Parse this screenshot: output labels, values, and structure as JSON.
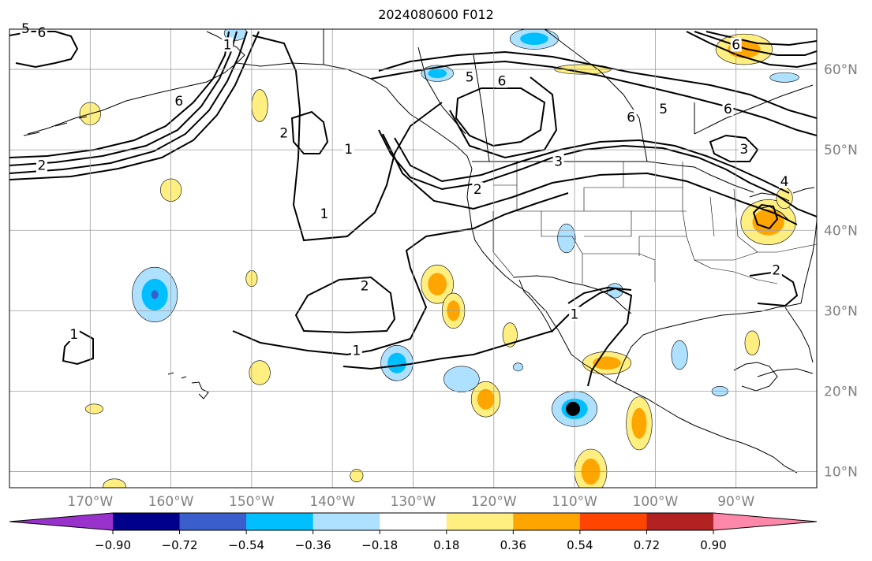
{
  "title": "2024080600 F012",
  "map": {
    "projection": "plate-carree",
    "lon_range": [
      -180,
      -80
    ],
    "lat_range": [
      8,
      65
    ],
    "lon_ticks": [
      {
        "value": -170,
        "label": "170°W"
      },
      {
        "value": -160,
        "label": "160°W"
      },
      {
        "value": -150,
        "label": "150°W"
      },
      {
        "value": -140,
        "label": "140°W"
      },
      {
        "value": -130,
        "label": "130°W"
      },
      {
        "value": -120,
        "label": "120°W"
      },
      {
        "value": -110,
        "label": "110°W"
      },
      {
        "value": -100,
        "label": "100°W"
      },
      {
        "value": -90,
        "label": "90°W"
      }
    ],
    "lat_ticks": [
      {
        "value": 10,
        "label": "10°N"
      },
      {
        "value": 20,
        "label": "20°N"
      },
      {
        "value": 30,
        "label": "30°N"
      },
      {
        "value": 40,
        "label": "40°N"
      },
      {
        "value": 50,
        "label": "50°N"
      },
      {
        "value": 60,
        "label": "60°N"
      }
    ],
    "gridlines": true,
    "marker": {
      "lon": -110.2,
      "lat": 17.8,
      "color": "#000000"
    }
  },
  "contours": {
    "color": "#000000",
    "labels": [
      {
        "text": "1",
        "lon": -138,
        "lat": 50
      },
      {
        "text": "1",
        "lon": -141,
        "lat": 42
      },
      {
        "text": "1",
        "lon": -172,
        "lat": 27
      },
      {
        "text": "1",
        "lon": -153,
        "lat": 63
      },
      {
        "text": "1",
        "lon": -137,
        "lat": 25
      },
      {
        "text": "1",
        "lon": -110,
        "lat": 29.5
      },
      {
        "text": "2",
        "lon": -136,
        "lat": 33
      },
      {
        "text": "2",
        "lon": -146,
        "lat": 52
      },
      {
        "text": "2",
        "lon": -122,
        "lat": 45
      },
      {
        "text": "2",
        "lon": -176,
        "lat": 48
      },
      {
        "text": "2",
        "lon": -85,
        "lat": 35
      },
      {
        "text": "3",
        "lon": -112,
        "lat": 48.5
      },
      {
        "text": "3",
        "lon": -89,
        "lat": 50
      },
      {
        "text": "4",
        "lon": -84,
        "lat": 46
      },
      {
        "text": "5",
        "lon": -123,
        "lat": 59
      },
      {
        "text": "5",
        "lon": -99,
        "lat": 55
      },
      {
        "text": "5",
        "lon": -178,
        "lat": 65
      },
      {
        "text": "6",
        "lon": -119,
        "lat": 58.5
      },
      {
        "text": "6",
        "lon": -176,
        "lat": 64.5
      },
      {
        "text": "6",
        "lon": -159,
        "lat": 56
      },
      {
        "text": "6",
        "lon": -91,
        "lat": 55
      },
      {
        "text": "6",
        "lon": -90,
        "lat": 63
      },
      {
        "text": "6",
        "lon": -103,
        "lat": 54
      }
    ]
  },
  "shading": [
    {
      "lon": -162,
      "lat": 32,
      "rx": 2.8,
      "ry": 3.4,
      "levels": [
        "#aee0ff",
        "#00bfff",
        "#3a5fcd"
      ]
    },
    {
      "lon": -110,
      "lat": 17.8,
      "rx": 2.8,
      "ry": 2.2,
      "levels": [
        "#aee0ff",
        "#00bfff"
      ]
    },
    {
      "lon": -127,
      "lat": 33.3,
      "rx": 2.0,
      "ry": 2.4,
      "levels": [
        "#ffee80",
        "#ffa500"
      ]
    },
    {
      "lon": -125,
      "lat": 30.0,
      "rx": 1.4,
      "ry": 2.2,
      "levels": [
        "#ffee80",
        "#ffa500"
      ]
    },
    {
      "lon": -121,
      "lat": 19.0,
      "rx": 1.8,
      "ry": 2.2,
      "levels": [
        "#ffee80",
        "#ffa500"
      ]
    },
    {
      "lon": -108,
      "lat": 10.0,
      "rx": 2.0,
      "ry": 2.8,
      "levels": [
        "#ffee80",
        "#ffa500"
      ]
    },
    {
      "lon": -102,
      "lat": 16.0,
      "rx": 1.6,
      "ry": 3.3,
      "levels": [
        "#ffee80",
        "#ffa500"
      ]
    },
    {
      "lon": -106,
      "lat": 23.5,
      "rx": 3.0,
      "ry": 1.4,
      "levels": [
        "#ffee80",
        "#ffa500"
      ]
    },
    {
      "lon": -86,
      "lat": 41.0,
      "rx": 3.4,
      "ry": 2.8,
      "levels": [
        "#ffee80",
        "#ffa500"
      ]
    },
    {
      "lon": -132,
      "lat": 23.5,
      "rx": 2.0,
      "ry": 2.2,
      "levels": [
        "#aee0ff",
        "#00bfff"
      ]
    },
    {
      "lon": -124,
      "lat": 21.5,
      "rx": 2.2,
      "ry": 1.6,
      "levels": [
        "#aee0ff"
      ]
    },
    {
      "lon": -111,
      "lat": 39.0,
      "rx": 1.1,
      "ry": 1.8,
      "levels": [
        "#aee0ff"
      ]
    },
    {
      "lon": -97,
      "lat": 24.5,
      "rx": 1.0,
      "ry": 1.8,
      "levels": [
        "#aee0ff"
      ]
    },
    {
      "lon": -105,
      "lat": 32.5,
      "rx": 1.0,
      "ry": 0.9,
      "levels": [
        "#aee0ff"
      ]
    },
    {
      "lon": -115,
      "lat": 63.8,
      "rx": 3.0,
      "ry": 1.3,
      "levels": [
        "#aee0ff",
        "#00bfff"
      ]
    },
    {
      "lon": -127,
      "lat": 59.5,
      "rx": 2.0,
      "ry": 1.0,
      "levels": [
        "#aee0ff",
        "#00bfff"
      ]
    },
    {
      "lon": -170,
      "lat": 54.5,
      "rx": 1.3,
      "ry": 1.4,
      "levels": [
        "#ffee80"
      ]
    },
    {
      "lon": -149,
      "lat": 55.5,
      "rx": 1.0,
      "ry": 2.0,
      "levels": [
        "#ffee80"
      ]
    },
    {
      "lon": -160,
      "lat": 45.0,
      "rx": 1.3,
      "ry": 1.4,
      "levels": [
        "#ffee80"
      ]
    },
    {
      "lon": -150,
      "lat": 34.0,
      "rx": 0.7,
      "ry": 1.0,
      "levels": [
        "#ffee80"
      ]
    },
    {
      "lon": -149,
      "lat": 22.3,
      "rx": 1.3,
      "ry": 1.5,
      "levels": [
        "#ffee80"
      ]
    },
    {
      "lon": -118,
      "lat": 27.0,
      "rx": 0.9,
      "ry": 1.5,
      "levels": [
        "#ffee80"
      ]
    },
    {
      "lon": -88,
      "lat": 26.0,
      "rx": 0.9,
      "ry": 1.5,
      "levels": [
        "#ffee80"
      ]
    },
    {
      "lon": -169.5,
      "lat": 17.8,
      "rx": 1.1,
      "ry": 0.6,
      "levels": [
        "#ffee80"
      ]
    },
    {
      "lon": -137,
      "lat": 9.5,
      "rx": 0.8,
      "ry": 0.8,
      "levels": [
        "#ffee80"
      ]
    },
    {
      "lon": -167,
      "lat": 8.2,
      "rx": 1.4,
      "ry": 0.9,
      "levels": [
        "#ffee80"
      ]
    },
    {
      "lon": -89,
      "lat": 62.5,
      "rx": 3.5,
      "ry": 1.9,
      "levels": [
        "#ffee80",
        "#ffa500"
      ]
    },
    {
      "lon": -109,
      "lat": 60.0,
      "rx": 3.5,
      "ry": 0.6,
      "levels": [
        "#ffee80"
      ]
    },
    {
      "lon": -84,
      "lat": 59.0,
      "rx": 1.8,
      "ry": 0.6,
      "levels": [
        "#aee0ff"
      ]
    },
    {
      "lon": -152,
      "lat": 64.5,
      "rx": 1.4,
      "ry": 0.9,
      "levels": [
        "#aee0ff"
      ]
    },
    {
      "lon": -84,
      "lat": 44.0,
      "rx": 1.0,
      "ry": 1.3,
      "levels": [
        "#ffee80"
      ]
    },
    {
      "lon": -92,
      "lat": 20.0,
      "rx": 1.0,
      "ry": 0.6,
      "levels": [
        "#aee0ff"
      ]
    },
    {
      "lon": -117,
      "lat": 23.0,
      "rx": 0.6,
      "ry": 0.5,
      "levels": [
        "#aee0ff"
      ]
    }
  ],
  "colorbar": {
    "colors": [
      "#9932cc",
      "#00008b",
      "#3a5fcd",
      "#00bfff",
      "#aee0ff",
      "#ffffff",
      "#ffee80",
      "#ffa500",
      "#ff4500",
      "#b22222",
      "#ff88aa"
    ],
    "tick_labels": [
      "−0.90",
      "−0.72",
      "−0.54",
      "−0.36",
      "−0.18",
      "0.18",
      "0.36",
      "0.54",
      "0.72",
      "0.90"
    ],
    "extend": "both"
  }
}
